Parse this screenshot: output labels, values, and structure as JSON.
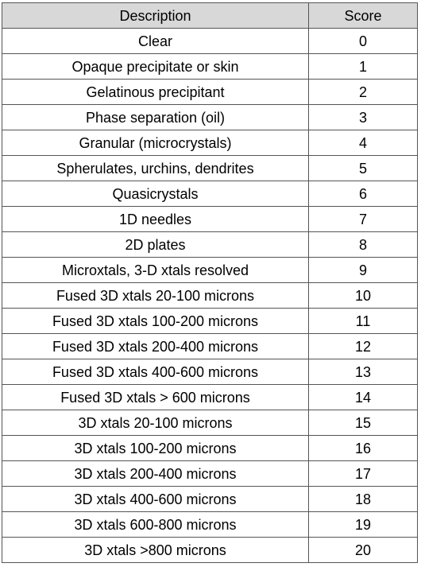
{
  "table": {
    "headers": {
      "description": "Description",
      "score": "Score"
    },
    "rows": [
      {
        "description": "Clear",
        "score": "0"
      },
      {
        "description": "Opaque precipitate or skin",
        "score": "1"
      },
      {
        "description": "Gelatinous precipitant",
        "score": "2"
      },
      {
        "description": "Phase separation (oil)",
        "score": "3"
      },
      {
        "description": "Granular (microcrystals)",
        "score": "4"
      },
      {
        "description": "Spherulates, urchins, dendrites",
        "score": "5"
      },
      {
        "description": "Quasicrystals",
        "score": "6"
      },
      {
        "description": "1D needles",
        "score": "7"
      },
      {
        "description": "2D plates",
        "score": "8"
      },
      {
        "description": "Microxtals, 3-D xtals resolved",
        "score": "9"
      },
      {
        "description": "Fused 3D xtals 20-100 microns",
        "score": "10"
      },
      {
        "description": "Fused 3D xtals 100-200 microns",
        "score": "11"
      },
      {
        "description": "Fused 3D xtals 200-400 microns",
        "score": "12"
      },
      {
        "description": "Fused 3D xtals 400-600 microns",
        "score": "13"
      },
      {
        "description": "Fused 3D xtals > 600 microns",
        "score": "14"
      },
      {
        "description": "3D xtals 20-100 microns",
        "score": "15"
      },
      {
        "description": "3D xtals 100-200 microns",
        "score": "16"
      },
      {
        "description": "3D xtals 200-400 microns",
        "score": "17"
      },
      {
        "description": "3D xtals 400-600 microns",
        "score": "18"
      },
      {
        "description": "3D xtals 600-800 microns",
        "score": "19"
      },
      {
        "description": "3D xtals >800 microns",
        "score": "20"
      }
    ]
  },
  "colors": {
    "header_background": "#d8d8d8",
    "border": "#555555"
  }
}
